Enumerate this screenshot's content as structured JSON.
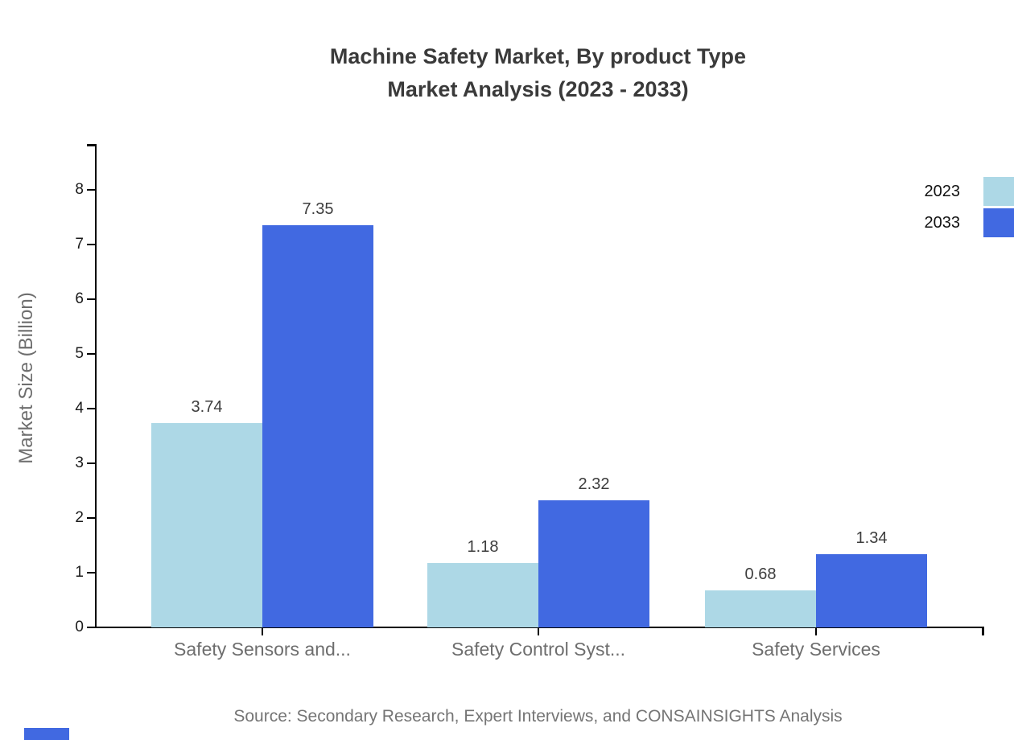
{
  "title": {
    "line1": "Machine Safety Market, By product Type",
    "line2": "Market Analysis (2023 - 2033)"
  },
  "y_axis": {
    "label": "Market Size (Billion)"
  },
  "legend": {
    "items": [
      {
        "label": "2023",
        "color": "#ADD8E6"
      },
      {
        "label": "2033",
        "color": "#4169E1"
      }
    ]
  },
  "footer": {
    "source": "Source: Secondary Research, Expert Interviews, and CONSAINSIGHTS Analysis"
  },
  "watermark": {
    "color": "#4169E1"
  },
  "chart_data": {
    "type": "bar",
    "title": "Machine Safety Market, By product Type Market Analysis (2023 - 2033)",
    "categories": [
      "Safety Sensors and...",
      "Safety Control Syst...",
      "Safety Services"
    ],
    "series": [
      {
        "name": "2023",
        "color": "#ADD8E6",
        "values": [
          3.74,
          1.18,
          0.68
        ]
      },
      {
        "name": "2033",
        "color": "#4169E1",
        "values": [
          7.35,
          2.32,
          1.34
        ]
      }
    ],
    "value_labels": [
      "3.74",
      "7.35",
      "1.18",
      "2.32",
      "0.68",
      "1.34"
    ],
    "xlabel": "",
    "ylabel": "Market Size (Billion)",
    "ylim": [
      0,
      8.8
    ],
    "yticks": [
      0,
      1,
      2,
      3,
      4,
      5,
      6,
      7,
      8
    ],
    "grid": false,
    "legend_position": "top-right",
    "bar_value_format": "0.00"
  }
}
